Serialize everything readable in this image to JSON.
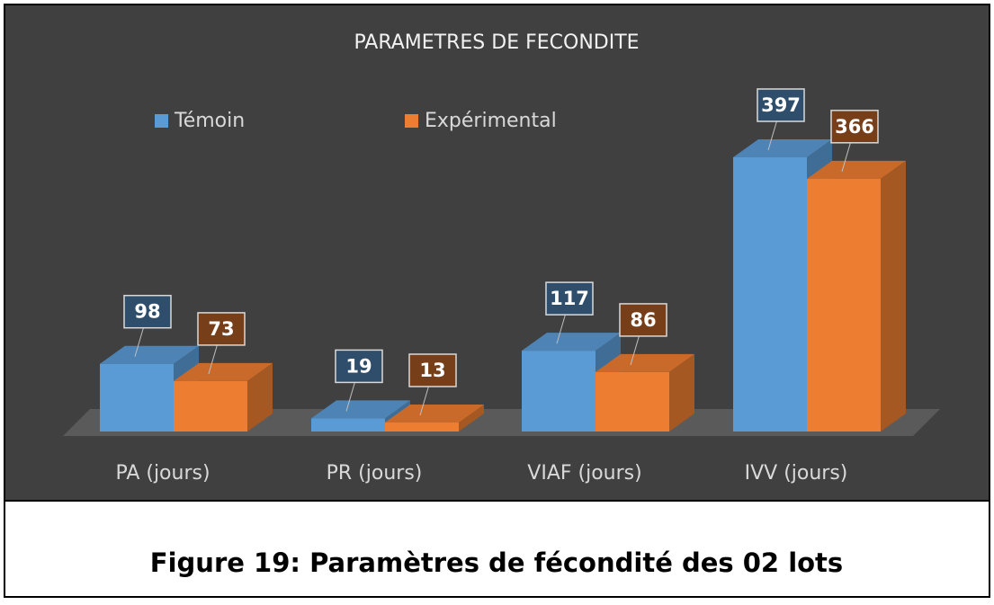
{
  "chart_data": {
    "type": "bar3d",
    "title": "PARAMETRES DE FECONDITE",
    "categories": [
      "PA (jours)",
      "PR (jours)",
      "VIAF (jours)",
      "IVV (jours)"
    ],
    "series": [
      {
        "name": "Témoin",
        "color": "#5b9bd5",
        "values": [
          98,
          19,
          117,
          397
        ]
      },
      {
        "name": "Expérimental",
        "color": "#ed7d31",
        "values": [
          73,
          13,
          86,
          366
        ]
      }
    ],
    "legend": "top",
    "caption": "Figure 19: Paramètres de fécondité des 02 lots"
  }
}
